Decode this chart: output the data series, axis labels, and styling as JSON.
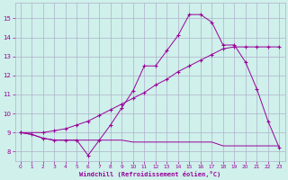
{
  "xlabel": "Windchill (Refroidissement éolien,°C)",
  "background_color": "#cff0eb",
  "grid_color": "#b0b0cc",
  "line_color": "#990099",
  "xlim": [
    -0.5,
    23.5
  ],
  "ylim": [
    7.5,
    15.8
  ],
  "xticks": [
    0,
    1,
    2,
    3,
    4,
    5,
    6,
    7,
    8,
    9,
    10,
    11,
    12,
    13,
    14,
    15,
    16,
    17,
    18,
    19,
    20,
    21,
    22,
    23
  ],
  "yticks": [
    8,
    9,
    10,
    11,
    12,
    13,
    14,
    15
  ],
  "series1_x": [
    0,
    1,
    2,
    3,
    4,
    5,
    6,
    7,
    8,
    9,
    10,
    11,
    12,
    13,
    14,
    15,
    16,
    17,
    18,
    19,
    20,
    21,
    22,
    23
  ],
  "series1_y": [
    9.0,
    8.9,
    8.7,
    8.6,
    8.6,
    8.6,
    7.8,
    8.6,
    9.4,
    10.3,
    11.2,
    12.5,
    12.5,
    13.3,
    14.1,
    15.2,
    15.2,
    14.8,
    13.6,
    13.6,
    12.7,
    11.3,
    9.6,
    8.2
  ],
  "series2_x": [
    0,
    2,
    3,
    4,
    5,
    6,
    7,
    8,
    9,
    10,
    11,
    12,
    13,
    14,
    15,
    16,
    17,
    18,
    19,
    20,
    21,
    22,
    23
  ],
  "series2_y": [
    9.0,
    9.0,
    9.1,
    9.2,
    9.4,
    9.6,
    9.9,
    10.2,
    10.5,
    10.8,
    11.1,
    11.5,
    11.8,
    12.2,
    12.5,
    12.8,
    13.1,
    13.4,
    13.5,
    13.5,
    13.5,
    13.5,
    13.5
  ],
  "series3_x": [
    0,
    1,
    2,
    3,
    4,
    5,
    6,
    7,
    8,
    9,
    10,
    11,
    12,
    13,
    14,
    15,
    16,
    17,
    18,
    19,
    20,
    21,
    22,
    23
  ],
  "series3_y": [
    9.0,
    8.9,
    8.7,
    8.6,
    8.6,
    8.6,
    8.6,
    8.6,
    8.6,
    8.6,
    8.5,
    8.5,
    8.5,
    8.5,
    8.5,
    8.5,
    8.5,
    8.5,
    8.3,
    8.3,
    8.3,
    8.3,
    8.3,
    8.3
  ]
}
